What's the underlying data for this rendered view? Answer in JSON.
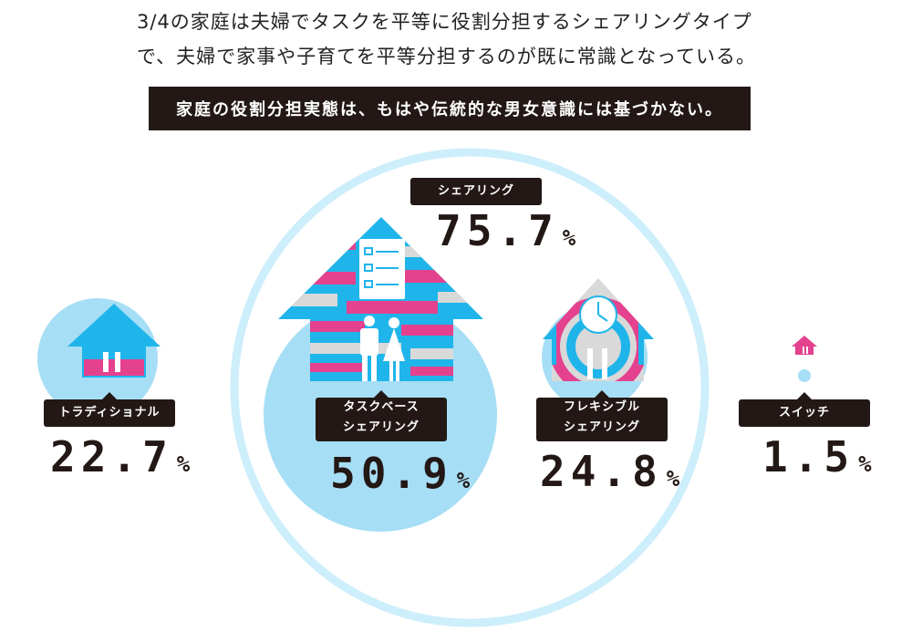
{
  "intro": {
    "line1": "3/4の家庭は夫婦でタスクを平等に役割分担するシェアリングタイプ",
    "line2": "で、夫婦で家事や子育てを平等分担するのが既に常識となっている。"
  },
  "banner": "家庭の役割分担実態は、もはや伝統的な男女意識には基づかない。",
  "colors": {
    "light_blue": "#a6def5",
    "cyan": "#1fb5eb",
    "pink": "#e4418e",
    "gray": "#d9d9d9",
    "dark": "#231815"
  },
  "chart_data": {
    "type": "bubble",
    "group": {
      "label": "シェアリング",
      "value": 75.7,
      "display": "75.7",
      "unit": "%"
    },
    "categories": [
      {
        "key": "traditional",
        "label": "トラディショナル",
        "value": 22.7,
        "display": "22.7",
        "unit": "%"
      },
      {
        "key": "task",
        "label_line1": "タスクベース",
        "label_line2": "シェアリング",
        "value": 50.9,
        "display": "50.9",
        "unit": "%"
      },
      {
        "key": "flex",
        "label_line1": "フレキシブル",
        "label_line2": "シェアリング",
        "value": 24.8,
        "display": "24.8",
        "unit": "%"
      },
      {
        "key": "switch",
        "label": "スイッチ",
        "value": 1.5,
        "display": "1.5",
        "unit": "%"
      }
    ]
  }
}
